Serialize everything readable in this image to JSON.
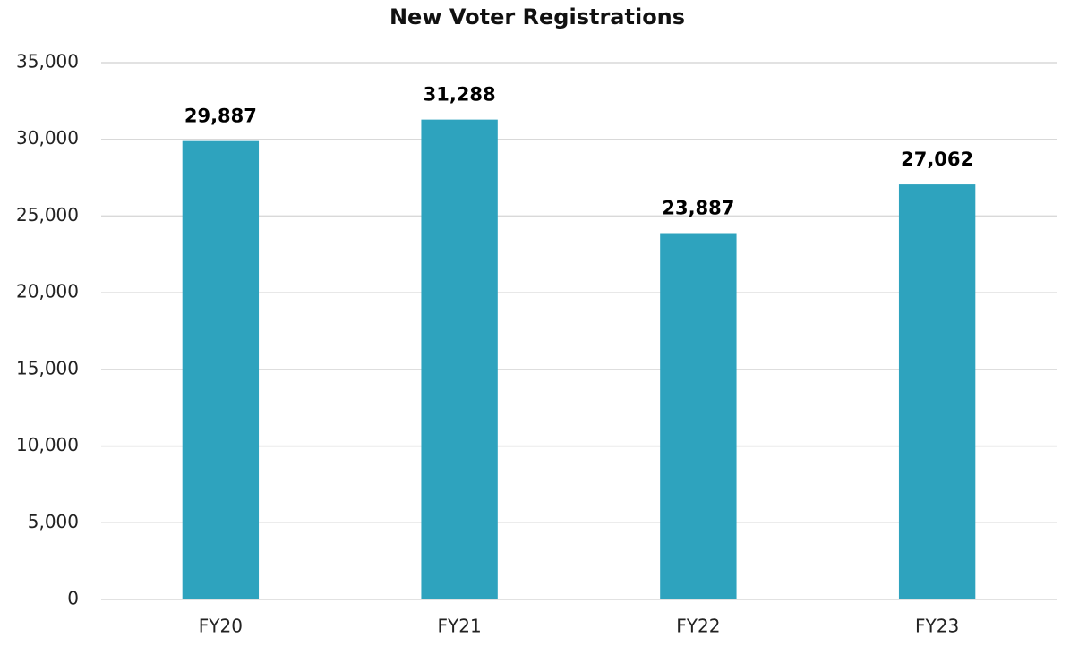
{
  "chart_data": {
    "type": "bar",
    "title": "New Voter Registrations",
    "categories": [
      "FY20",
      "FY21",
      "FY22",
      "FY23"
    ],
    "values": [
      29887,
      31288,
      23887,
      27062
    ],
    "value_labels": [
      "29,887",
      "31,288",
      "23,887",
      "27,062"
    ],
    "color": "#2ea3be",
    "ylim": [
      0,
      35000
    ],
    "yticks": [
      0,
      {
        "value": 5000,
        "label": "5,000"
      },
      {
        "value": 10000,
        "label": "10,000"
      },
      {
        "value": 15000,
        "label": "15,000"
      },
      {
        "value": 20000,
        "label": "20,000"
      },
      {
        "value": 25000,
        "label": "25,000"
      },
      {
        "value": 30000,
        "label": "30,000"
      },
      {
        "value": 35000,
        "label": "35,000"
      }
    ],
    "grid": true
  }
}
